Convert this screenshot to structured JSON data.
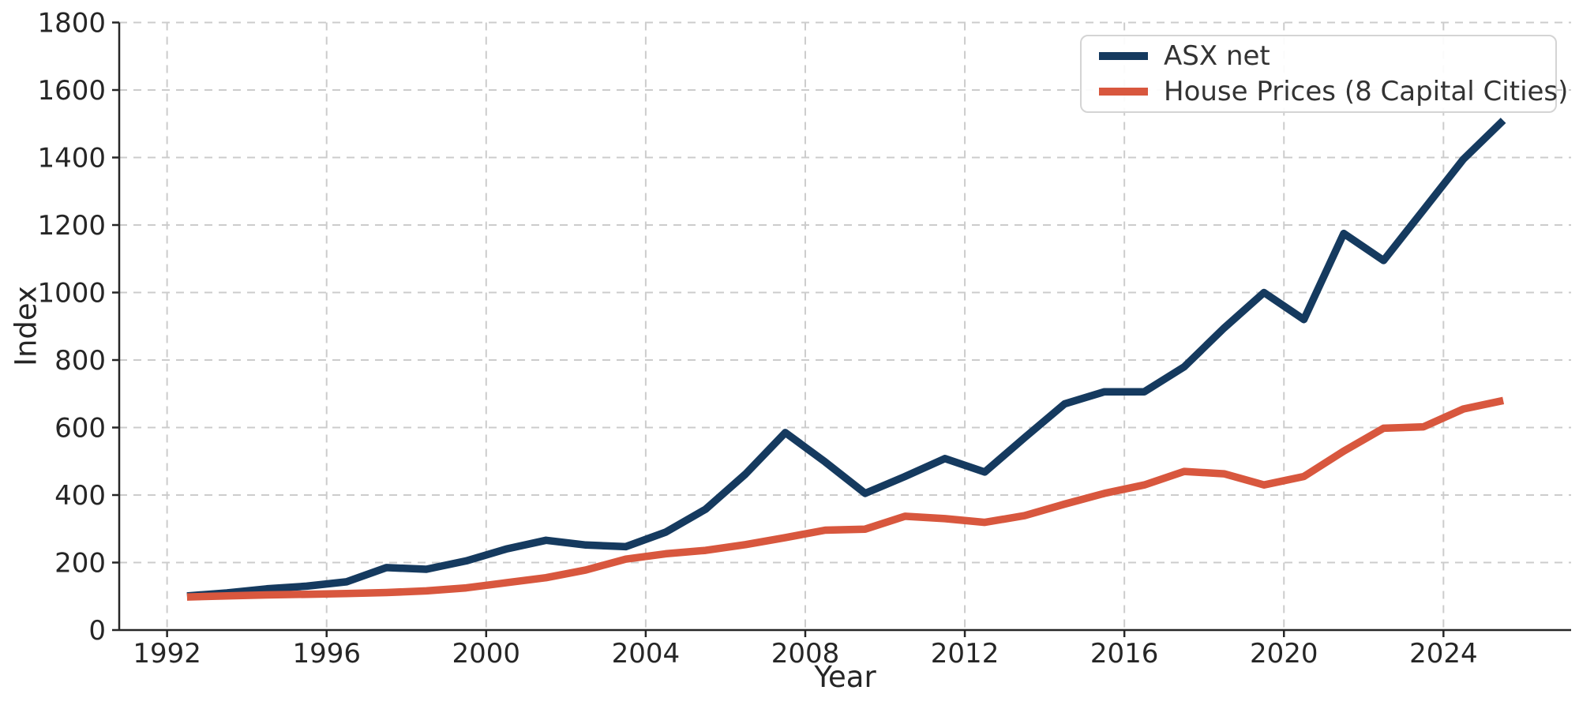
{
  "chart_data": {
    "type": "line",
    "title": "",
    "xlabel": "Year",
    "ylabel": "Index",
    "x": [
      1992.5,
      1993.5,
      1994.5,
      1995.5,
      1996.5,
      1997.5,
      1998.5,
      1999.5,
      2000.5,
      2001.5,
      2002.5,
      2003.5,
      2004.5,
      2005.5,
      2006.5,
      2007.5,
      2008.5,
      2009.5,
      2010.5,
      2011.5,
      2012.5,
      2013.5,
      2014.5,
      2015.5,
      2016.5,
      2017.5,
      2018.5,
      2019.5,
      2020.5,
      2021.5,
      2022.5,
      2023.5,
      2024.5,
      2025.5
    ],
    "series": [
      {
        "name": "ASX net",
        "color": "#153a5f",
        "values": [
          101,
          110,
          122,
          130,
          143,
          185,
          180,
          205,
          240,
          266,
          252,
          247,
          290,
          358,
          462,
          585,
          498,
          405,
          455,
          508,
          468,
          570,
          670,
          706,
          706,
          780,
          895,
          1000,
          920,
          1175,
          1095,
          1245,
          1395,
          1510
        ]
      },
      {
        "name": "House Prices (8 Capital Cities)",
        "color": "#d8573e",
        "values": [
          98,
          101,
          104,
          106,
          108,
          111,
          116,
          125,
          140,
          155,
          178,
          210,
          226,
          236,
          253,
          274,
          296,
          299,
          337,
          330,
          319,
          339,
          373,
          405,
          430,
          470,
          463,
          430,
          455,
          530,
          598,
          602,
          655,
          680
        ]
      }
    ],
    "xlim": [
      1990.8,
      2027.2
    ],
    "ylim": [
      0,
      1800
    ],
    "x_ticks": [
      1992,
      1996,
      2000,
      2004,
      2008,
      2012,
      2016,
      2020,
      2024
    ],
    "y_ticks": [
      0,
      200,
      400,
      600,
      800,
      1000,
      1200,
      1400,
      1600,
      1800
    ],
    "grid": true,
    "legend_position": "upper right"
  },
  "styles": {
    "grid_color": "#cccccc",
    "spine_color": "#262626",
    "tick_label_color": "#262626",
    "legend_border_color": "#d4d4d4",
    "background": "#ffffff"
  }
}
